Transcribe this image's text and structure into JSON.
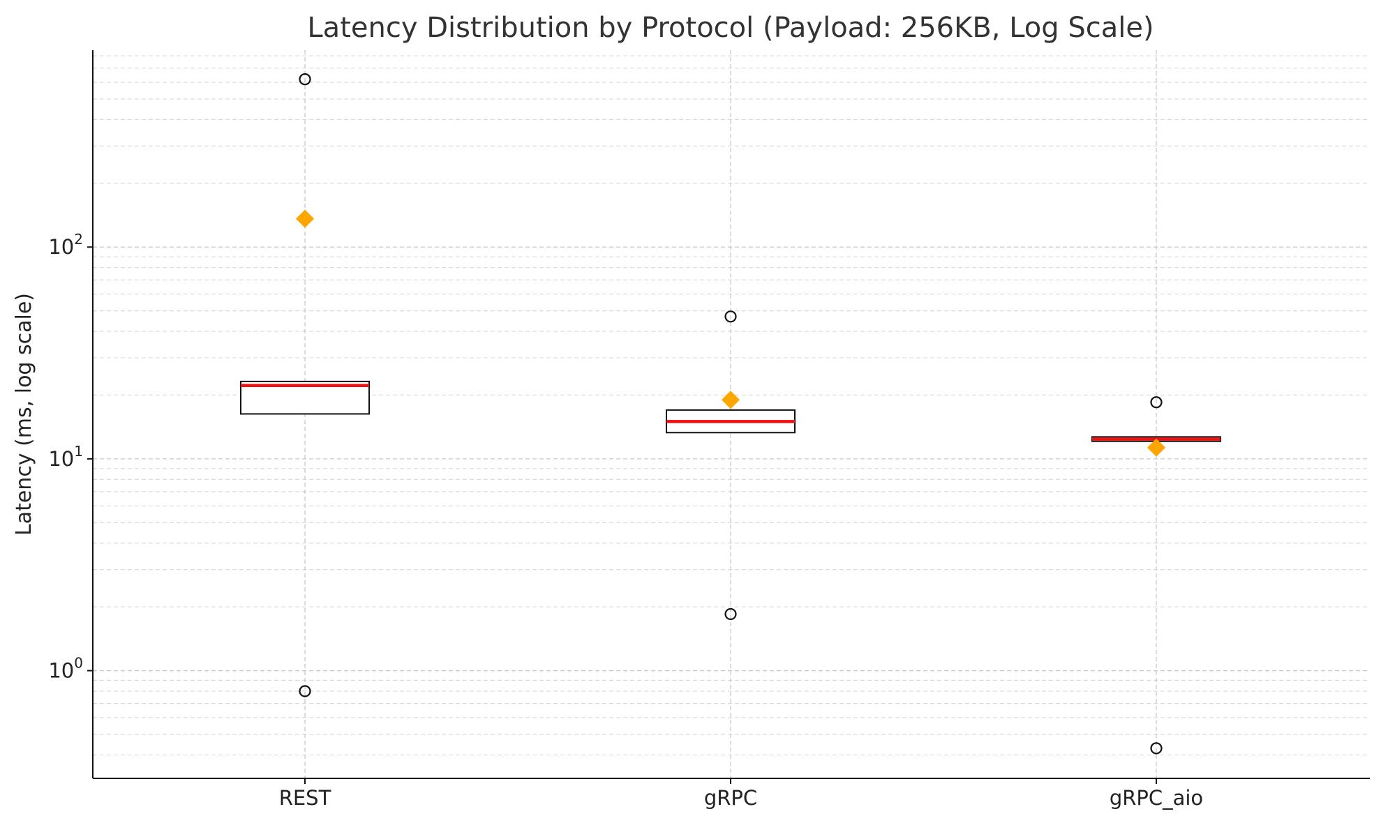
{
  "chart_data": {
    "type": "box",
    "title": "Latency Distribution by Protocol (Payload: 256KB, Log Scale)",
    "xlabel": "",
    "ylabel": "Latency (ms, log scale)",
    "yscale": "log",
    "ylim": [
      0.31,
      850
    ],
    "y_ticks": [
      {
        "value": 1,
        "base": "10",
        "exp": "0"
      },
      {
        "value": 10,
        "base": "10",
        "exp": "1"
      },
      {
        "value": 100,
        "base": "10",
        "exp": "2"
      }
    ],
    "grid": true,
    "categories": [
      "REST",
      "gRPC",
      "gRPC_aio"
    ],
    "boxes": [
      {
        "category": "REST",
        "q1": 16.3,
        "median": 22.2,
        "q3": 23.2,
        "mean": 136,
        "outliers": [
          620,
          0.8
        ]
      },
      {
        "category": "gRPC",
        "q1": 13.3,
        "median": 15.0,
        "q3": 17.0,
        "mean": 19.0,
        "outliers": [
          47,
          1.85
        ]
      },
      {
        "category": "gRPC_aio",
        "q1": 12.1,
        "median": 12.4,
        "q3": 12.7,
        "mean": 11.3,
        "outliers": [
          18.5,
          0.43
        ]
      }
    ],
    "colors": {
      "median": "#ee1111",
      "mean": "#ffa500",
      "box": "#111111",
      "outlier": "#111111"
    }
  }
}
